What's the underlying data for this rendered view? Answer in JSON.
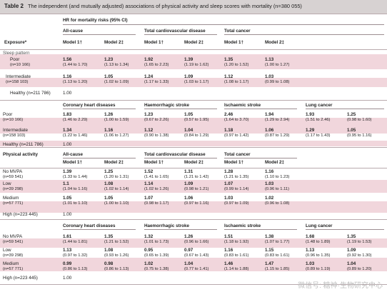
{
  "caption": {
    "label": "Table 2",
    "text": "The independent (and mutually adjusted) associations of physical activity and sleep scores with mortality (n=380 055)"
  },
  "hr_header": "HR for mortality risks (95% CI)",
  "exposure_header": "Exposure*",
  "model1": "Model 1†",
  "model2": "Model 2‡",
  "groups": {
    "allcause": "All-cause",
    "cvd": "Total cardiovascular disease",
    "cancer": "Total cancer",
    "chd": "Coronary heart diseases",
    "haem": "Haemorrhagic stroke",
    "isch": "Ischaemic stroke",
    "lung": "Lung cancer"
  },
  "sections": {
    "sleep": "Sleep pattern",
    "pa": "Physical activity"
  },
  "sleep_rows": [
    {
      "label": "Poor",
      "n": "(n=10 166)"
    },
    {
      "label": "Intermediate",
      "n": "(n=158 103)"
    },
    {
      "label": "Healthy (n=211 786)"
    }
  ],
  "pa_rows": [
    {
      "label": "No MVPA",
      "n": "(n=59 541)"
    },
    {
      "label": "Low",
      "n": "(n=39 298)"
    },
    {
      "label": "Medium",
      "n": "(n=57 771)"
    },
    {
      "label": "High (n=223 445)"
    }
  ],
  "block1": [
    [
      [
        "1.56",
        "(1.44 to 1.70)"
      ],
      [
        "1.23",
        "(1.13 to 1.34)"
      ],
      [
        "1.92",
        "(1.65 to 2.23)"
      ],
      [
        "1.39",
        "(1.19 to 1.62)"
      ],
      [
        "1.35",
        "(1.20 to 1.52)"
      ],
      [
        "1.13",
        "(1.00 to 1.27)"
      ]
    ],
    [
      [
        "1.16",
        "(1.13 to 1.20)"
      ],
      [
        "1.05",
        "(1.02 to 1.09)"
      ],
      [
        "1.24",
        "(1.17 to 1.33)"
      ],
      [
        "1.09",
        "(1.03 to 1.17)"
      ],
      [
        "1.12",
        "(1.08 to 1.17)"
      ],
      [
        "1.03",
        "(0.99 to 1.08)"
      ]
    ],
    "1.00"
  ],
  "block2": [
    [
      [
        "1.83",
        "(1.46 to 2.29)"
      ],
      [
        "1.26",
        "(1.00 to 1.59)"
      ],
      [
        "1.23",
        "(0.67 to 2.26)"
      ],
      [
        "1.05",
        "(0.57 to 1.95)"
      ],
      [
        "2.46",
        "(1.64 to 3.70)"
      ],
      [
        "1.94",
        "(1.29 to 2.94)"
      ],
      [
        "1.93",
        "(1.51 to 2.46)"
      ],
      [
        "1.25",
        "(0.98 to 1.60)"
      ]
    ],
    [
      [
        "1.34",
        "(1.22 to 1.46)"
      ],
      [
        "1.16",
        "(1.06 to 1.27)"
      ],
      [
        "1.12",
        "(0.90 to 1.38)"
      ],
      [
        "1.04",
        "(0.84 to 1.29)"
      ],
      [
        "1.18",
        "(0.97 to 1.42)"
      ],
      [
        "1.06",
        "(0.87 to 1.29)"
      ],
      [
        "1.29",
        "(1.17 to 1.43)"
      ],
      [
        "1.05",
        "(0.95 to 1.16)"
      ]
    ],
    "1.00"
  ],
  "block3": [
    [
      [
        "1.39",
        "(1.33 to 1.44)"
      ],
      [
        "1.25",
        "(1.20 to 1.31)"
      ],
      [
        "1.52",
        "(1.41 to 1.65)"
      ],
      [
        "1.31",
        "(1.21 to 1.42)"
      ],
      [
        "1.28",
        "(1.21 to 1.35)"
      ],
      [
        "1.16",
        "(1.10 to 1.23)"
      ]
    ],
    [
      [
        "1.1",
        "(1.04 to 1.16)"
      ],
      [
        "1.08",
        "(1.02 to 1.14)"
      ],
      [
        "1.14",
        "(1.02 to 1.26)"
      ],
      [
        "1.09",
        "(0.98 to 1.21)"
      ],
      [
        "1.07",
        "(0.99 to 1.14)"
      ],
      [
        "1.03",
        "(0.96 to 1.11)"
      ]
    ],
    [
      [
        "1.05",
        "(1.01 to 1.10)"
      ],
      [
        "1.05",
        "(1.00 to 1.10)"
      ],
      [
        "1.07",
        "(0.98 to 1.17)"
      ],
      [
        "1.06",
        "(0.97 to 1.16)"
      ],
      [
        "1.03",
        "(0.97 to 1.09)"
      ],
      [
        "1.02",
        "(0.96 to 1.08)"
      ]
    ],
    "1.00"
  ],
  "block4": [
    [
      [
        "1.61",
        "(1.44 to 1.81)"
      ],
      [
        "1.35",
        "(1.21 to 1.52)"
      ],
      [
        "1.32",
        "(1.01 to 1.73)"
      ],
      [
        "1.26",
        "(0.96 to 1.66)"
      ],
      [
        "1.51",
        "(1.18 to 1.92)"
      ],
      [
        "1.38",
        "(1.07 to 1.77)"
      ],
      [
        "1.68",
        "(1.48 to 1.89)"
      ],
      [
        "1.35",
        "(1.19 to 1.53)"
      ]
    ],
    [
      [
        "1.13",
        "(0.97 to 1.32)"
      ],
      [
        "1.08",
        "(0.93 to 1.26)"
      ],
      [
        "0.95",
        "(0.65 to 1.39)"
      ],
      [
        "0.97",
        "(0.67 to 1.43)"
      ],
      [
        "1.16",
        "(0.83 to 1.61)"
      ],
      [
        "1.15",
        "(0.83 to 1.61)"
      ],
      [
        "1.13",
        "(0.96 to 1.35)"
      ],
      [
        "1.09",
        "(0.92 to 1.30)"
      ]
    ],
    [
      [
        "0.99",
        "(0.86 to 1.13)"
      ],
      [
        "0.98",
        "(0.86 to 1.13)"
      ],
      [
        "1.02",
        "(0.75 to 1.38)"
      ],
      [
        "1.04",
        "(0.77 to 1.41)"
      ],
      [
        "1.46",
        "(1.14 to 1.88)"
      ],
      [
        "1.47",
        "(1.15 to 1.85)"
      ],
      [
        "1.03",
        "(0.89 to 1.19)"
      ],
      [
        "1.04",
        "(0.89 to 1.20)"
      ]
    ],
    "1.00"
  ],
  "watermark": "微信号: 糖神·生物研究中心"
}
